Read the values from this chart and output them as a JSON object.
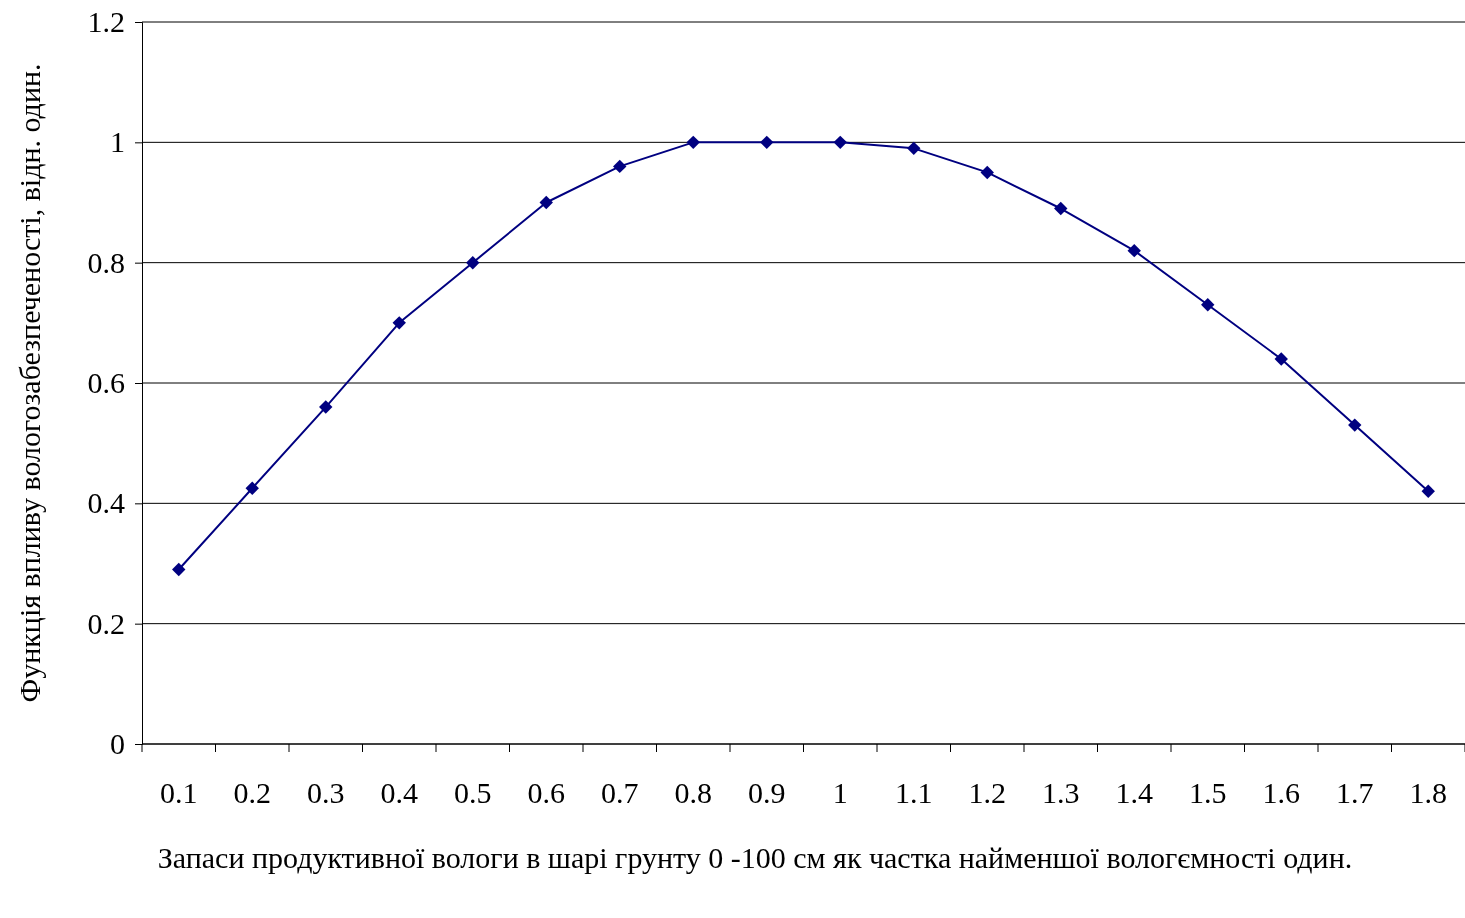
{
  "chart_data": {
    "type": "line",
    "xlabel": "Запаси продуктивної вологи в шарі грунту 0 -100 см як частка найменшої вологємності один.",
    "ylabel": "Функція впливу вологозабезпеченості, відн. один.",
    "categories": [
      "0.1",
      "0.2",
      "0.3",
      "0.4",
      "0.5",
      "0.6",
      "0.7",
      "0.8",
      "0.9",
      "1",
      "1.1",
      "1.2",
      "1.3",
      "1.4",
      "1.5",
      "1.6",
      "1.7",
      "1.8"
    ],
    "series": [
      {
        "color": "#000080",
        "values": [
          0.29,
          0.425,
          0.56,
          0.7,
          0.8,
          0.9,
          0.96,
          1.0,
          1.0,
          1.0,
          0.99,
          0.95,
          0.89,
          0.82,
          0.73,
          0.64,
          0.53,
          0.42
        ]
      }
    ],
    "ylim": [
      0,
      1.2
    ],
    "yticks": [
      0,
      0.2,
      0.4,
      0.6,
      0.8,
      1,
      1.2
    ],
    "grid": "y",
    "marker": "diamond",
    "line_style": "solid"
  }
}
